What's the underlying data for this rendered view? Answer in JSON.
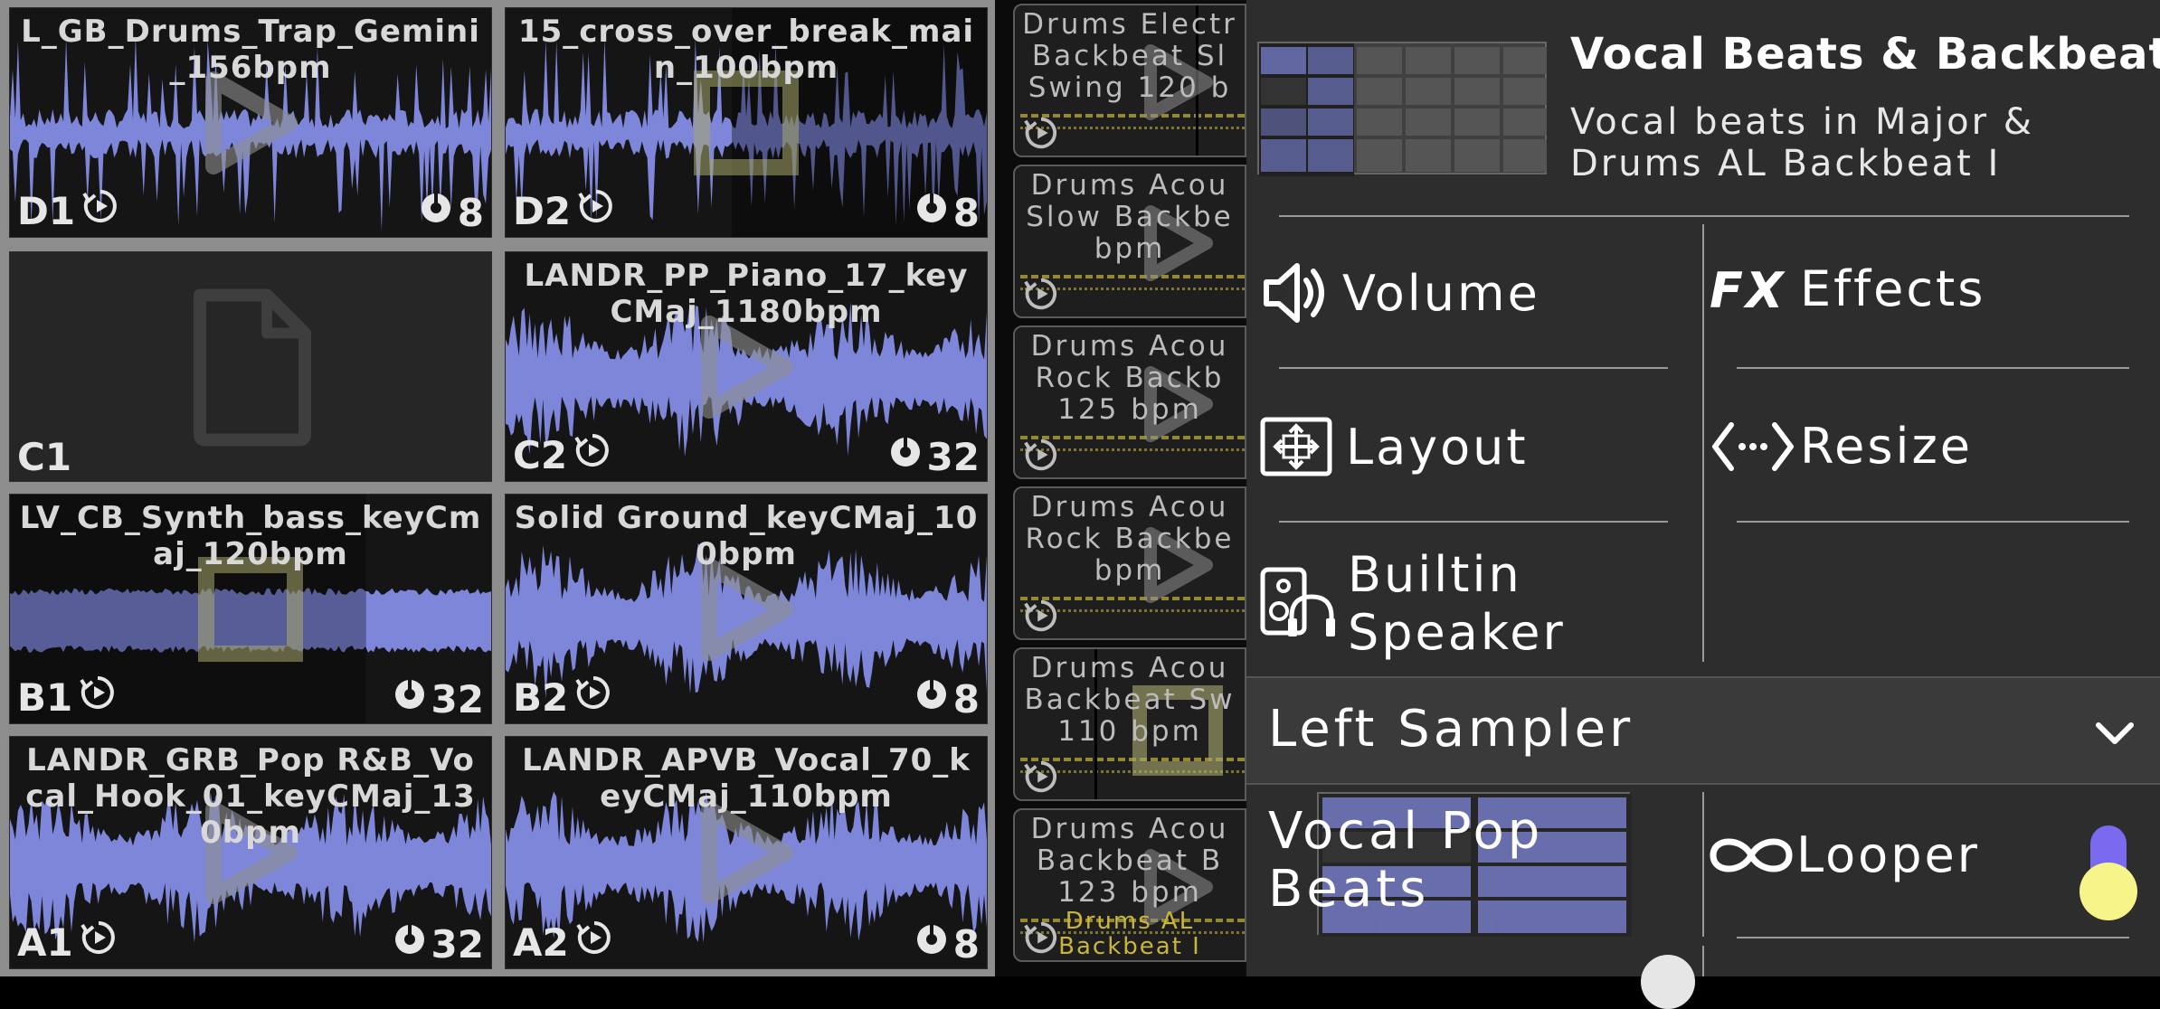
{
  "pads": [
    {
      "id": "D1",
      "title": "L_GB_Drums_Trap_Gemini_156bpm",
      "bars": "8",
      "overlay": "play",
      "empty": false
    },
    {
      "id": "D2",
      "title": "15_cross_over_break_main_100bpm",
      "bars": "8",
      "overlay": "square",
      "empty": false
    },
    {
      "id": "C1",
      "title": "",
      "bars": "",
      "overlay": "document",
      "empty": true
    },
    {
      "id": "C2",
      "title": "LANDR_PP_Piano_17_keyCMaj_1180bpm",
      "bars": "32",
      "overlay": "play",
      "empty": false
    },
    {
      "id": "B1",
      "title": "LV_CB_Synth_bass_keyCmaj_120bpm",
      "bars": "32",
      "overlay": "square",
      "empty": false
    },
    {
      "id": "B2",
      "title": "Solid Ground_keyCMaj_100bpm",
      "bars": "8",
      "overlay": "play",
      "empty": false
    },
    {
      "id": "A1",
      "title": "LANDR_GRB_Pop R&B_Vocal_Hook_01_keyCMaj_130bpm",
      "bars": "32",
      "overlay": "play",
      "empty": false
    },
    {
      "id": "A2",
      "title": "LANDR_APVB_Vocal_70_keyCMaj_110bpm",
      "bars": "8",
      "overlay": "play",
      "empty": false
    }
  ],
  "mid_list": [
    {
      "lines": [
        "Drums Electr",
        "Backbeat Sl",
        "Swing 120 b"
      ],
      "overlay": "play"
    },
    {
      "lines": [
        "Drums Acou",
        "Slow Backbe",
        "bpm"
      ],
      "overlay": "play"
    },
    {
      "lines": [
        "Drums Acou",
        "Rock Backb",
        "125 bpm"
      ],
      "overlay": "play"
    },
    {
      "lines": [
        "Drums Acou",
        "Rock Backbe",
        "bpm"
      ],
      "overlay": "play"
    },
    {
      "lines": [
        "Drums Acou",
        "Backbeat Sw",
        "110 bpm"
      ],
      "overlay": "square"
    },
    {
      "lines": [
        "Drums Acou",
        "Backbeat B",
        "123 bpm",
        "Drums AL",
        "Backbeat I"
      ],
      "overlay": "play"
    }
  ],
  "panel": {
    "title": "Vocal Beats & Backbeat",
    "description_line1": "Vocal beats in Major &",
    "description_line2": "Drums AL Backbeat I",
    "volume_label": "Volume",
    "effects_label": "Effects",
    "layout_label": "Layout",
    "resize_label": "Resize",
    "speaker_line1": "Builtin",
    "speaker_line2": "Speaker",
    "sampler_label": "Left Sampler",
    "pop_line1": "Vocal Pop",
    "pop_line2": "Beats",
    "looper_label": "Looper",
    "looper_enabled": true,
    "accent_color": "#7a6af0",
    "wave_color": "#7d86d8"
  }
}
